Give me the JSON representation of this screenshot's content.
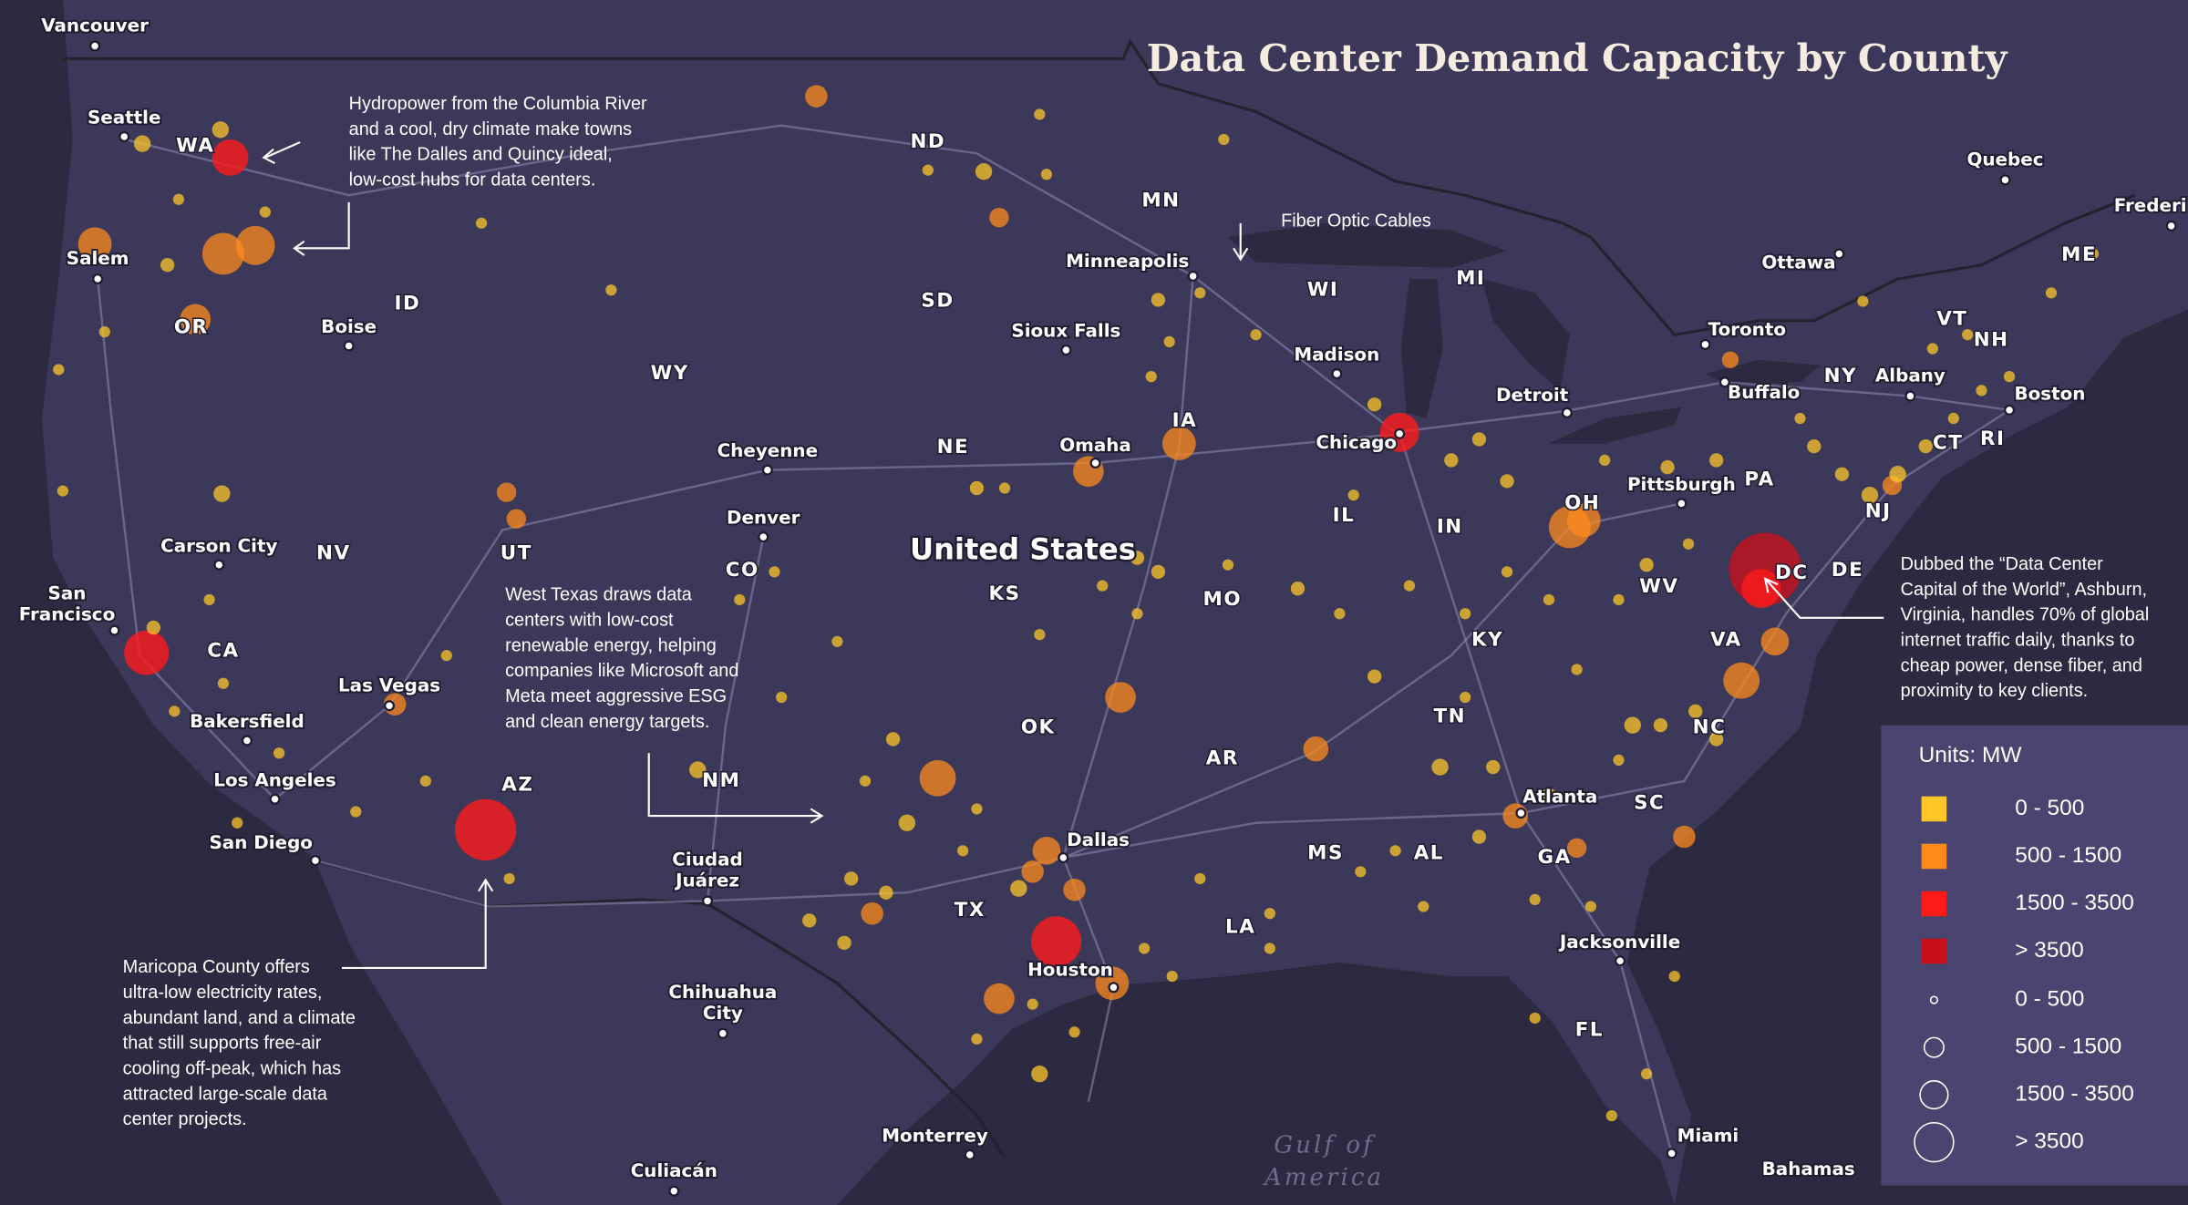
{
  "title": "Data Center Demand Capacity by County",
  "country": "United States",
  "water": [
    "Gulf of",
    "America"
  ],
  "annotations": [
    {
      "lines": [
        "Hydropower from the Columbia River",
        "and a cool, dry climate make towns",
        "like The Dalles and Quincy ideal,",
        "low-cost hubs for data centers."
      ]
    },
    {
      "lines": [
        "Fiber Optic Cables"
      ]
    },
    {
      "lines": [
        "West Texas draws data",
        "centers with low-cost",
        "renewable energy, helping",
        "companies like Microsoft and",
        "Meta meet aggressive ESG",
        "and clean energy targets."
      ]
    },
    {
      "lines": [
        "Maricopa County offers",
        "ultra-low electricity rates,",
        "abundant land, and a climate",
        "that still supports free-air",
        "cooling off-peak, which has",
        "attracted large-scale data",
        "center projects."
      ]
    },
    {
      "lines": [
        "Dubbed the “Data Center",
        "Capital of the World”, Ashburn,",
        "Virginia, handles 70% of global",
        "internet traffic daily, thanks to",
        "cheap power, dense fiber, and",
        "proximity to key clients."
      ]
    }
  ],
  "places": [
    {
      "lines": [
        "Vancouver"
      ]
    },
    {
      "lines": [
        "Seattle"
      ]
    },
    {
      "lines": [
        "Salem"
      ]
    },
    {
      "lines": [
        "Boise"
      ]
    },
    {
      "lines": [
        "Carson City"
      ]
    },
    {
      "lines": [
        "San",
        "Francisco"
      ]
    },
    {
      "lines": [
        "Las Vegas"
      ]
    },
    {
      "lines": [
        "Bakersfield"
      ]
    },
    {
      "lines": [
        "Los Angeles"
      ]
    },
    {
      "lines": [
        "San Diego"
      ]
    },
    {
      "lines": [
        "Ciudad",
        "Juárez"
      ]
    },
    {
      "lines": [
        "Chihuahua",
        "City"
      ]
    },
    {
      "lines": [
        "Culiacán"
      ]
    },
    {
      "lines": [
        "Monterrey"
      ]
    },
    {
      "lines": [
        "Cheyenne"
      ]
    },
    {
      "lines": [
        "Denver"
      ]
    },
    {
      "lines": [
        "Minneapolis"
      ]
    },
    {
      "lines": [
        "Sioux Falls"
      ]
    },
    {
      "lines": [
        "Omaha"
      ]
    },
    {
      "lines": [
        "Madison"
      ]
    },
    {
      "lines": [
        "Chicago"
      ]
    },
    {
      "lines": [
        "Detroit"
      ]
    },
    {
      "lines": [
        "Toronto"
      ]
    },
    {
      "lines": [
        "Ottawa"
      ]
    },
    {
      "lines": [
        "Quebec"
      ]
    },
    {
      "lines": [
        "Frederi"
      ]
    },
    {
      "lines": [
        "Buffalo"
      ]
    },
    {
      "lines": [
        "Albany"
      ]
    },
    {
      "lines": [
        "Boston"
      ]
    },
    {
      "lines": [
        "Pittsburgh"
      ]
    },
    {
      "lines": [
        "Dallas"
      ]
    },
    {
      "lines": [
        "Houston"
      ]
    },
    {
      "lines": [
        "Atlanta"
      ]
    },
    {
      "lines": [
        "Jacksonville"
      ]
    },
    {
      "lines": [
        "Miami"
      ]
    },
    {
      "lines": [
        "Bahamas"
      ]
    }
  ],
  "states": [
    "WA",
    "OR",
    "ID",
    "NV",
    "CA",
    "UT",
    "AZ",
    "WY",
    "CO",
    "NM",
    "ND",
    "SD",
    "NE",
    "KS",
    "OK",
    "TX",
    "MN",
    "IA",
    "MO",
    "AR",
    "LA",
    "WI",
    "MI",
    "IL",
    "IN",
    "OH",
    "KY",
    "TN",
    "MS",
    "AL",
    "GA",
    "FL",
    "SC",
    "NC",
    "VA",
    "WV",
    "PA",
    "NY",
    "VT",
    "NH",
    "ME",
    "CT",
    "RI",
    "NJ",
    "DE",
    "DC"
  ],
  "legend": {
    "title": "Units: MW",
    "color_bins": [
      {
        "label": "0 - 500",
        "color": "#ffc62a"
      },
      {
        "label": "500 - 1500",
        "color": "#ff8a1c"
      },
      {
        "label": "1500 - 3500",
        "color": "#ff1a1a"
      },
      {
        "label": "> 3500",
        "color": "#c8101a"
      }
    ],
    "size_bins": [
      "0 - 500",
      "500 - 1500",
      "1500 - 3500",
      "> 3500"
    ]
  }
}
